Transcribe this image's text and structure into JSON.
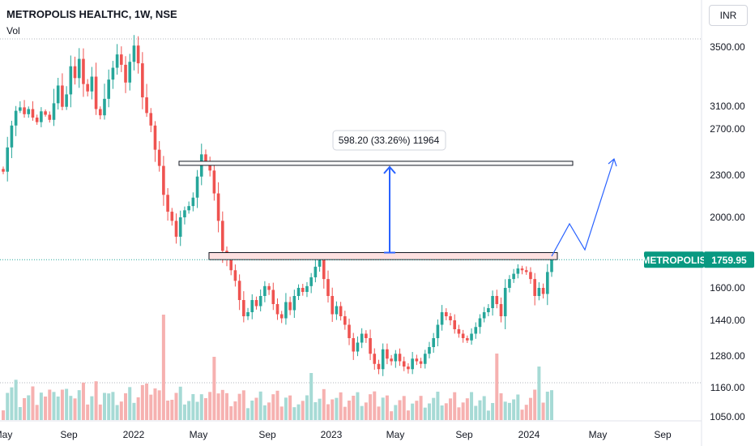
{
  "header": {
    "title": "METROPOLIS HEALTHC, 1W, NSE",
    "volume_label": "Vol",
    "currency_button": "INR"
  },
  "colors": {
    "up": "#26a69a",
    "down": "#ef5350",
    "volume_up": "#a6dad5",
    "volume_down": "#f6b1b0",
    "annotation_blue": "#2962ff",
    "price_tag_bg": "#089981"
  },
  "price_tag": {
    "symbol": "METROPOLIS",
    "value": "1759.95"
  },
  "measurement": {
    "label": "598.20 (33.26%) 11964"
  },
  "chart_data": {
    "type": "candlestick",
    "y_axis_ticks": [
      "3500.00",
      "3100.00",
      "2700.00",
      "2300.00",
      "2000.00",
      "1600.00",
      "1440.00",
      "1280.00",
      "1160.00",
      "1050.00"
    ],
    "x_axis_ticks": [
      "May",
      "Sep",
      "2022",
      "May",
      "Sep",
      "2023",
      "May",
      "Sep",
      "2024",
      "May",
      "Sep"
    ],
    "last_price": 1759.95,
    "resistance_zone": [
      1760,
      1800
    ],
    "target_zone": [
      2385,
      2420
    ],
    "measured_move": 598.2,
    "closes": [
      2330,
      2540,
      2760,
      3020,
      3080,
      2960,
      3050,
      2900,
      2820,
      3010,
      2950,
      2860,
      3120,
      3240,
      3090,
      3180,
      3370,
      3290,
      3420,
      3250,
      3200,
      3300,
      3050,
      2940,
      3150,
      3280,
      3360,
      3450,
      3380,
      3260,
      3400,
      3510,
      3390,
      3160,
      2980,
      2760,
      2520,
      2380,
      2160,
      2040,
      1980,
      1890,
      2000,
      2050,
      2080,
      2140,
      2290,
      2480,
      2420,
      2340,
      2170,
      1980,
      1810,
      1760,
      1700,
      1640,
      1540,
      1460,
      1480,
      1540,
      1510,
      1560,
      1610,
      1590,
      1520,
      1470,
      1450,
      1530,
      1490,
      1560,
      1600,
      1580,
      1610,
      1660,
      1720,
      1760,
      1650,
      1560,
      1470,
      1510,
      1460,
      1420,
      1360,
      1300,
      1340,
      1380,
      1360,
      1290,
      1250,
      1230,
      1310,
      1270,
      1260,
      1290,
      1260,
      1240,
      1230,
      1270,
      1260,
      1250,
      1290,
      1320,
      1360,
      1420,
      1480,
      1460,
      1440,
      1400,
      1380,
      1360,
      1350,
      1380,
      1410,
      1450,
      1480,
      1500,
      1560,
      1520,
      1460,
      1600,
      1650,
      1680,
      1710,
      1700,
      1690,
      1650,
      1560,
      1600,
      1570,
      1690,
      1759.95
    ]
  }
}
